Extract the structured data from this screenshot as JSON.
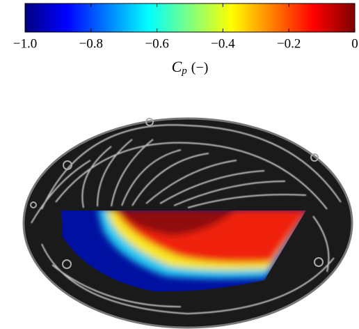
{
  "chart_data": {
    "type": "colorbar",
    "colormap": "jet",
    "xlim": [
      -1.0,
      0
    ],
    "xticks": [
      {
        "value": -1.0,
        "label": "−1.0"
      },
      {
        "value": -0.8,
        "label": "−0.8"
      },
      {
        "value": -0.6,
        "label": "−0.6"
      },
      {
        "value": -0.4,
        "label": "−0.4"
      },
      {
        "value": -0.2,
        "label": "−0.2"
      },
      0
    ],
    "xlabel_symbol": "C",
    "xlabel_subscript": "p",
    "xlabel_unit": "(−)"
  }
}
